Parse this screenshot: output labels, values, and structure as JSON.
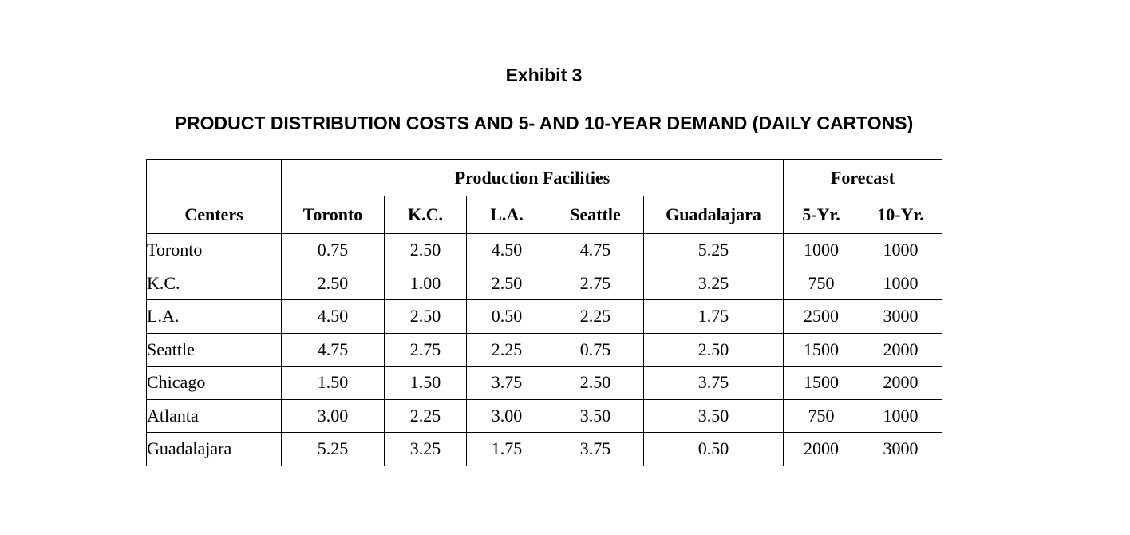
{
  "document": {
    "exhibit": "Exhibit 3",
    "title": "PRODUCT DISTRIBUTION COSTS AND 5- AND 10-YEAR DEMAND (DAILY CARTONS)"
  },
  "table": {
    "group_headers": {
      "blank": "",
      "production": "Production Facilities",
      "forecast": "Forecast"
    },
    "columns": [
      "Centers",
      "Toronto",
      "K.C.",
      "L.A.",
      "Seattle",
      "Guadalajara",
      "5-Yr.",
      "10-Yr."
    ],
    "rows": [
      [
        "Toronto",
        "0.75",
        "2.50",
        "4.50",
        "4.75",
        "5.25",
        "1000",
        "1000"
      ],
      [
        "K.C.",
        "2.50",
        "1.00",
        "2.50",
        "2.75",
        "3.25",
        "750",
        "1000"
      ],
      [
        "L.A.",
        "4.50",
        "2.50",
        "0.50",
        "2.25",
        "1.75",
        "2500",
        "3000"
      ],
      [
        "Seattle",
        "4.75",
        "2.75",
        "2.25",
        "0.75",
        "2.50",
        "1500",
        "2000"
      ],
      [
        "Chicago",
        "1.50",
        "1.50",
        "3.75",
        "2.50",
        "3.75",
        "1500",
        "2000"
      ],
      [
        "Atlanta",
        "3.00",
        "2.25",
        "3.00",
        "3.50",
        "3.50",
        "750",
        "1000"
      ],
      [
        "Guadalajara",
        "5.25",
        "3.25",
        "1.75",
        "3.75",
        "0.50",
        "2000",
        "3000"
      ]
    ]
  }
}
